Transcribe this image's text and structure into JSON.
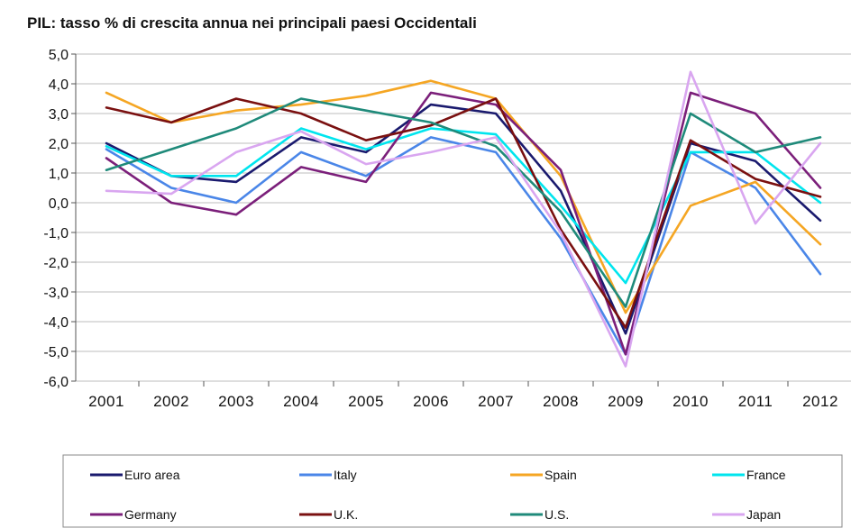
{
  "chart_data": {
    "type": "line",
    "title": "PIL: tasso % di crescita annua nei principali paesi Occidentali",
    "xlabel": "",
    "ylabel": "",
    "ylim": [
      -6,
      5
    ],
    "yticks": [
      "5,0",
      "4,0",
      "3,0",
      "2,0",
      "1,0",
      "0,0",
      "-1,0",
      "-2,0",
      "-3,0",
      "-4,0",
      "-5,0",
      "-6,0"
    ],
    "categories": [
      "2001",
      "2002",
      "2003",
      "2004",
      "2005",
      "2006",
      "2007",
      "2008",
      "2009",
      "2010",
      "2011",
      "2012"
    ],
    "grid": true,
    "legend_position": "bottom",
    "series": [
      {
        "name": "Euro area",
        "color": "#1a1a6e",
        "values": [
          2.0,
          0.9,
          0.7,
          2.2,
          1.7,
          3.3,
          3.0,
          0.4,
          -4.4,
          2.0,
          1.4,
          -0.6
        ]
      },
      {
        "name": "Italy",
        "color": "#4a86e8",
        "values": [
          1.8,
          0.5,
          0.0,
          1.7,
          0.9,
          2.2,
          1.7,
          -1.2,
          -5.1,
          1.7,
          0.5,
          -2.4
        ]
      },
      {
        "name": "Spain",
        "color": "#f5a623",
        "values": [
          3.7,
          2.7,
          3.1,
          3.3,
          3.6,
          4.1,
          3.5,
          0.9,
          -3.7,
          -0.1,
          0.7,
          -1.4
        ]
      },
      {
        "name": "France",
        "color": "#00e5ee",
        "values": [
          1.9,
          0.9,
          0.9,
          2.5,
          1.8,
          2.5,
          2.3,
          -0.1,
          -2.7,
          1.7,
          1.7,
          0.0
        ]
      },
      {
        "name": "Germany",
        "color": "#7b1f7a",
        "values": [
          1.5,
          0.0,
          -0.4,
          1.2,
          0.7,
          3.7,
          3.3,
          1.1,
          -5.1,
          3.7,
          3.0,
          0.5
        ]
      },
      {
        "name": "U.K.",
        "color": "#7a1010",
        "values": [
          3.2,
          2.7,
          3.5,
          3.0,
          2.1,
          2.6,
          3.5,
          -0.9,
          -4.2,
          2.1,
          0.8,
          0.2
        ]
      },
      {
        "name": "U.S.",
        "color": "#1f8a7a",
        "values": [
          1.1,
          1.8,
          2.5,
          3.5,
          3.1,
          2.7,
          1.9,
          -0.3,
          -3.5,
          3.0,
          1.7,
          2.2
        ]
      },
      {
        "name": "Japan",
        "color": "#d9a6f0",
        "values": [
          0.4,
          0.3,
          1.7,
          2.4,
          1.3,
          1.7,
          2.2,
          -1.0,
          -5.5,
          4.4,
          -0.7,
          2.0
        ]
      }
    ]
  }
}
